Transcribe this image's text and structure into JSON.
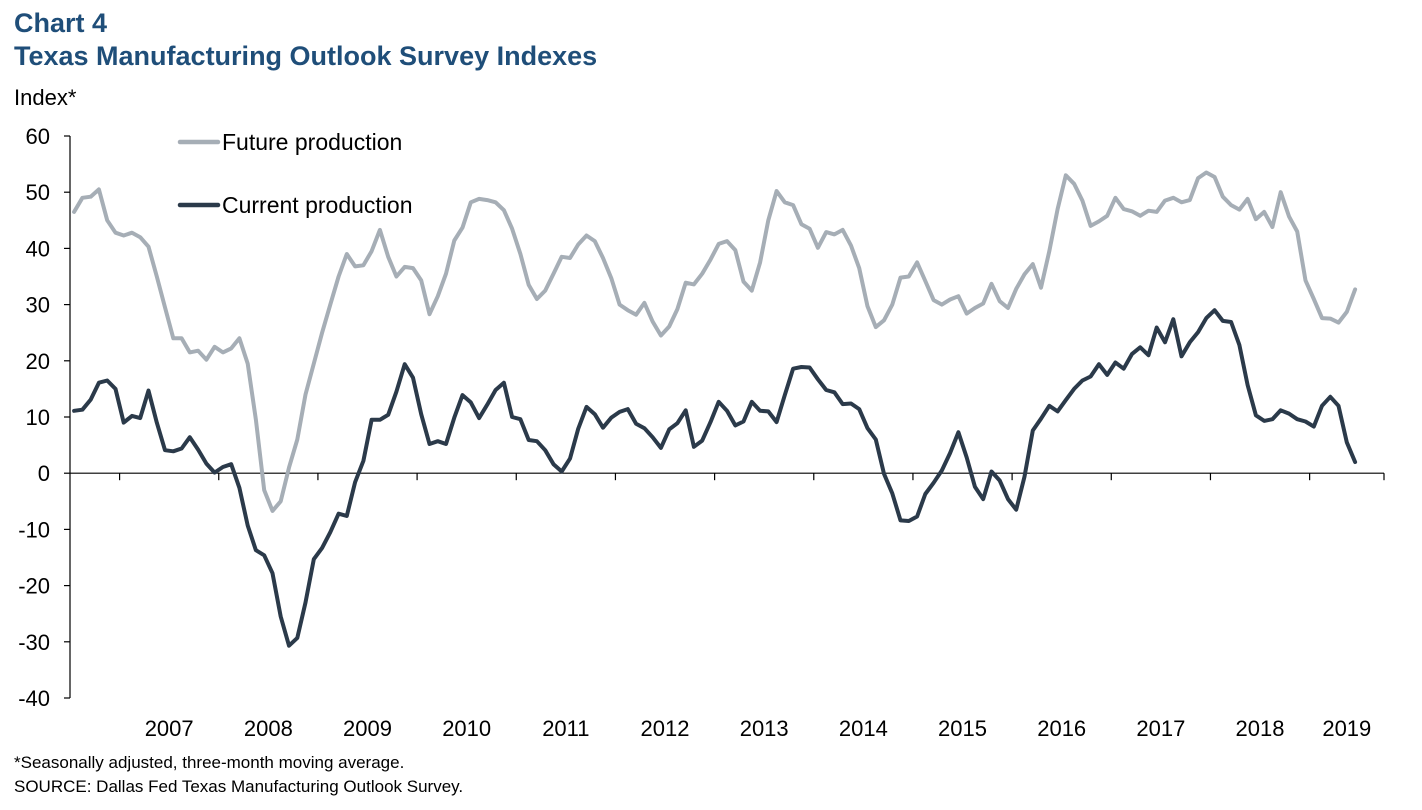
{
  "header": {
    "chart_label": "Chart 4",
    "title": "Texas Manufacturing Outlook Survey Indexes",
    "y_unit": "Index*"
  },
  "notes": {
    "line1": "*Seasonally adjusted, three-month moving average.",
    "line2": "SOURCE: Dallas Fed Texas Manufacturing Outlook Survey."
  },
  "chart_data": {
    "type": "line",
    "title": "Texas Manufacturing Outlook Survey Indexes",
    "ylabel": "Index*",
    "ylim": [
      -40,
      60
    ],
    "yticks": [
      60,
      50,
      40,
      30,
      20,
      10,
      0,
      -10,
      -20,
      -30,
      -40
    ],
    "x_start": "2006-07",
    "x_end": "2019-09",
    "x_tick_labels": [
      "2007",
      "2008",
      "2009",
      "2010",
      "2011",
      "2012",
      "2013",
      "2014",
      "2015",
      "2016",
      "2017",
      "2018",
      "2019"
    ],
    "grid": false,
    "legend_position": "top-left",
    "series": [
      {
        "name": "Future production",
        "color": "#A6AEB6",
        "values": [
          46.5,
          49,
          49.2,
          50.5,
          45,
          42.8,
          42.3,
          42.8,
          42,
          40.3,
          35,
          29.5,
          24,
          24,
          21.5,
          21.8,
          20.2,
          22.5,
          21.5,
          22.2,
          24,
          19.5,
          9.5,
          -3,
          -6.7,
          -5,
          1,
          6,
          14,
          19.5,
          25,
          30,
          35,
          39,
          36.8,
          37,
          39.5,
          43.3,
          38.5,
          35,
          36.7,
          36.5,
          34.3,
          28.3,
          31.5,
          35.5,
          41.4,
          43.7,
          48.2,
          48.8,
          48.6,
          48.2,
          46.8,
          43.5,
          39,
          33.5,
          31,
          32.5,
          35.5,
          38.5,
          38.3,
          40.7,
          42.3,
          41.3,
          38.3,
          34.7,
          30,
          29,
          28.2,
          30.3,
          27,
          24.5,
          26.1,
          29.2,
          33.9,
          33.6,
          35.5,
          38,
          40.8,
          41.3,
          39.7,
          34.1,
          32.5,
          37.5,
          45,
          50.2,
          48.2,
          47.7,
          44.3,
          43.5,
          40.1,
          42.9,
          42.5,
          43.3,
          40.5,
          36.5,
          29.7,
          26,
          27.2,
          30,
          34.8,
          35,
          37.5,
          34.2,
          30.8,
          30,
          30.9,
          31.5,
          28.4,
          29.4,
          30.2,
          33.7,
          30.6,
          29.4,
          32.8,
          35.4,
          37.2,
          33,
          39.5,
          47,
          53,
          51.5,
          48.5,
          44,
          44.8,
          45.8,
          49,
          47,
          46.6,
          45.8,
          46.7,
          46.5,
          48.5,
          49,
          48.2,
          48.6,
          52.5,
          53.5,
          52.7,
          49.2,
          47.7,
          46.9,
          48.8,
          45.2,
          46.5,
          43.8,
          50,
          45.7,
          43,
          34.3,
          31,
          27.6,
          27.5,
          26.8,
          28.7,
          32.7
        ]
      },
      {
        "name": "Current production",
        "color": "#2B3A4A",
        "values": [
          11.1,
          11.3,
          13.1,
          16.1,
          16.5,
          15,
          9,
          10.2,
          9.8,
          14.7,
          9,
          4.1,
          3.9,
          4.4,
          6.4,
          4.2,
          1.7,
          0.1,
          1.1,
          1.6,
          -2.6,
          -9.3,
          -13.7,
          -14.6,
          -17.8,
          -25.5,
          -30.7,
          -29.3,
          -23,
          -15.3,
          -13.3,
          -10.5,
          -7.2,
          -7.6,
          -1.6,
          2.2,
          9.5,
          9.5,
          10.4,
          14.5,
          19.4,
          17,
          10.5,
          5.2,
          5.7,
          5.2,
          9.9,
          13.9,
          12.6,
          9.8,
          12.2,
          14.8,
          16.1,
          10,
          9.6,
          5.9,
          5.7,
          4.1,
          1.6,
          0.3,
          2.6,
          7.9,
          11.8,
          10.5,
          8.1,
          9.9,
          10.9,
          11.4,
          8.8,
          8,
          6.4,
          4.5,
          7.8,
          8.9,
          11.2,
          4.7,
          5.8,
          9.1,
          12.7,
          11.1,
          8.5,
          9.2,
          12.7,
          11.1,
          11,
          9.1,
          13.9,
          18.6,
          18.9,
          18.8,
          16.7,
          14.8,
          14.4,
          12.3,
          12.4,
          11.4,
          8,
          6,
          -0.1,
          -3.6,
          -8.4,
          -8.5,
          -7.7,
          -3.7,
          -1.7,
          0.5,
          3.6,
          7.3,
          2.8,
          -2.4,
          -4.6,
          0.3,
          -1.3,
          -4.6,
          -6.5,
          -0.6,
          7.6,
          9.7,
          12,
          11,
          13,
          15,
          16.5,
          17.2,
          19.4,
          17.5,
          19.7,
          18.6,
          21.2,
          22.4,
          21,
          25.9,
          23.3,
          27.4,
          20.8,
          23.3,
          25.1,
          27.6,
          29,
          27.1,
          26.9,
          22.8,
          15.7,
          10.3,
          9.3,
          9.6,
          11.2,
          10.6,
          9.6,
          9.2,
          8.3,
          12,
          13.6,
          12,
          5.5,
          2
        ]
      }
    ]
  }
}
